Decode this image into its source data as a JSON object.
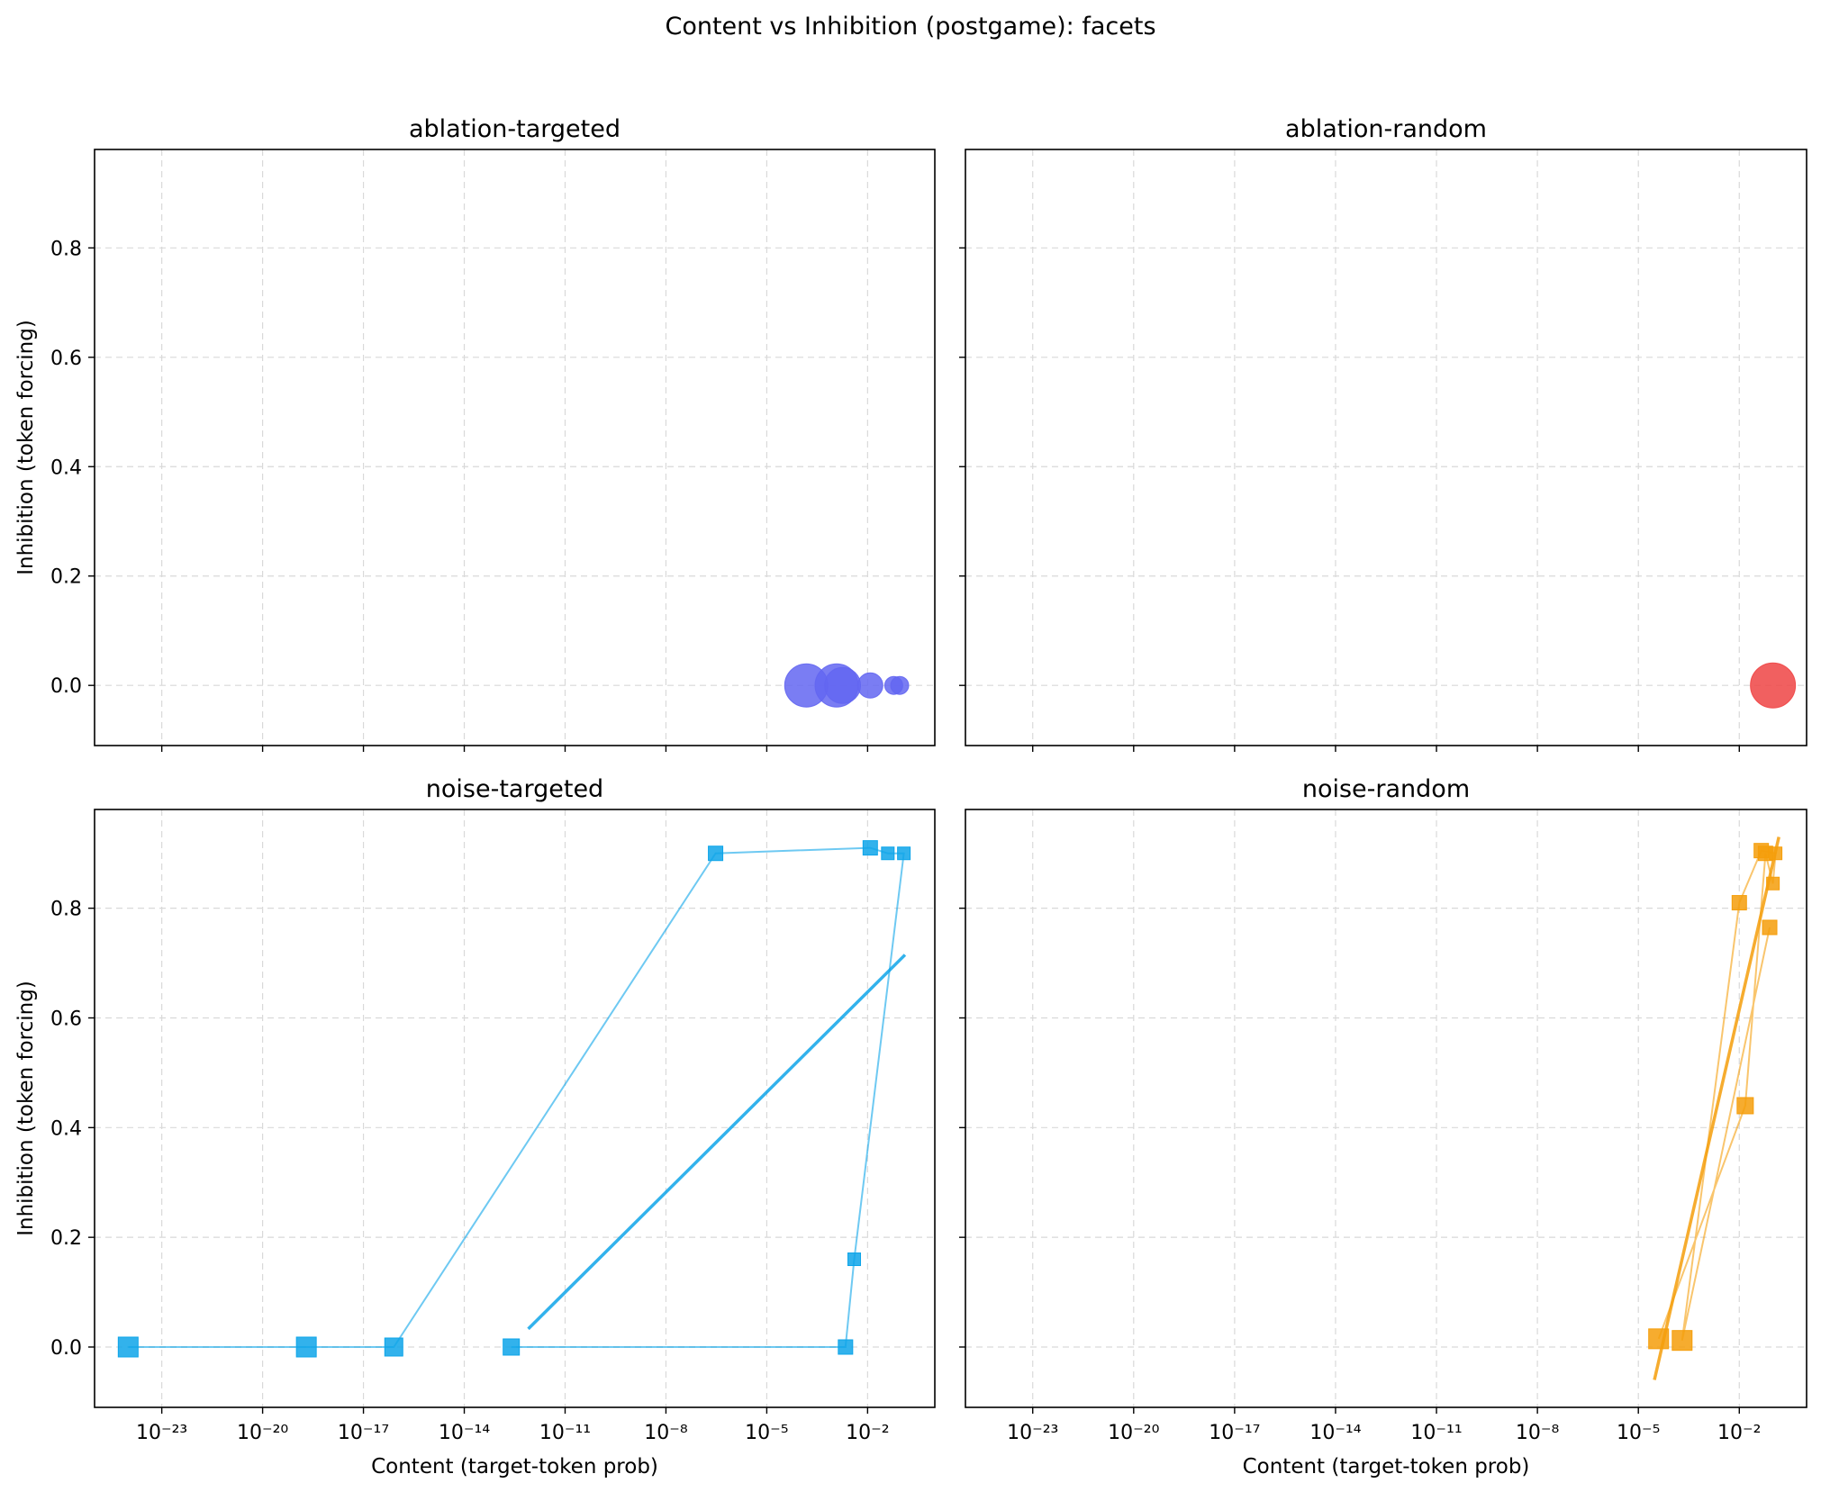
{
  "figure": {
    "title": "Content vs Inhibition (postgame): facets"
  },
  "chart_data": [
    {
      "type": "scatter",
      "title": "ablation-targeted",
      "xlabel": "",
      "ylabel": "Inhibition (token forcing)",
      "xscale": "log",
      "xlim": [
        1e-25,
        1.0
      ],
      "ylim": [
        -0.11,
        0.98
      ],
      "xticks": [
        1e-23,
        1e-20,
        1e-17,
        1e-14,
        1e-11,
        1e-08,
        1e-05,
        0.01
      ],
      "yticks": [
        0.0,
        0.2,
        0.4,
        0.6,
        0.8
      ],
      "grid": true,
      "color": "#6366f1",
      "marker": "circle",
      "connect": false,
      "points": [
        {
          "x": 0.00015,
          "y": 0.0,
          "size": 24
        },
        {
          "x": 0.0012,
          "y": 0.0,
          "size": 24
        },
        {
          "x": 0.0018,
          "y": 0.0,
          "size": 20
        },
        {
          "x": 0.012,
          "y": 0.0,
          "size": 14
        },
        {
          "x": 0.06,
          "y": 0.0,
          "size": 10
        },
        {
          "x": 0.09,
          "y": 0.0,
          "size": 10
        }
      ]
    },
    {
      "type": "scatter",
      "title": "ablation-random",
      "xlabel": "",
      "ylabel": "",
      "xscale": "log",
      "xlim": [
        1e-25,
        1.0
      ],
      "ylim": [
        -0.11,
        0.98
      ],
      "xticks": [
        1e-23,
        1e-20,
        1e-17,
        1e-14,
        1e-11,
        1e-08,
        1e-05,
        0.01
      ],
      "yticks": [
        0.0,
        0.2,
        0.4,
        0.6,
        0.8
      ],
      "grid": true,
      "color": "#ef4444",
      "marker": "circle",
      "connect": false,
      "points": [
        {
          "x": 0.1,
          "y": 0.0,
          "size": 25
        }
      ]
    },
    {
      "type": "line",
      "title": "noise-targeted",
      "xlabel": "Content (target-token prob)",
      "ylabel": "Inhibition (token forcing)",
      "xscale": "log",
      "xlim": [
        1e-25,
        1.0
      ],
      "ylim": [
        -0.11,
        0.98
      ],
      "xticks": [
        1e-23,
        1e-20,
        1e-17,
        1e-14,
        1e-11,
        1e-08,
        1e-05,
        0.01
      ],
      "yticks": [
        0.0,
        0.2,
        0.4,
        0.6,
        0.8
      ],
      "grid": true,
      "color": "#0ea5e9",
      "marker": "square",
      "connect": true,
      "points": [
        {
          "x": 1e-24,
          "y": 0.0,
          "size": 11
        },
        {
          "x": 2e-19,
          "y": 0.0,
          "size": 11
        },
        {
          "x": 8e-17,
          "y": 0.0,
          "size": 10
        },
        {
          "x": 3e-07,
          "y": 0.9,
          "size": 8
        },
        {
          "x": 0.012,
          "y": 0.91,
          "size": 8
        },
        {
          "x": 0.04,
          "y": 0.9,
          "size": 7
        },
        {
          "x": 0.12,
          "y": 0.9,
          "size": 7
        },
        {
          "x": 0.004,
          "y": 0.16,
          "size": 7
        },
        {
          "x": 0.0022,
          "y": 0.0,
          "size": 8
        },
        {
          "x": 2.5e-13,
          "y": 0.0,
          "size": 9
        }
      ],
      "trend": [
        {
          "x": 8e-13,
          "y": 0.033
        },
        {
          "x": 0.13,
          "y": 0.715
        }
      ]
    },
    {
      "type": "line",
      "title": "noise-random",
      "xlabel": "Content (target-token prob)",
      "ylabel": "",
      "xscale": "log",
      "xlim": [
        1e-25,
        1.0
      ],
      "ylim": [
        -0.11,
        0.98
      ],
      "xticks": [
        1e-23,
        1e-20,
        1e-17,
        1e-14,
        1e-11,
        1e-08,
        1e-05,
        0.01
      ],
      "yticks": [
        0.0,
        0.2,
        0.4,
        0.6,
        0.8
      ],
      "grid": true,
      "color": "#f59e0b",
      "marker": "square",
      "connect": true,
      "points": [
        {
          "x": 4e-05,
          "y": 0.015,
          "size": 11
        },
        {
          "x": 0.015,
          "y": 0.44,
          "size": 9
        },
        {
          "x": 0.06,
          "y": 0.9,
          "size": 8
        },
        {
          "x": 0.1,
          "y": 0.845,
          "size": 7
        },
        {
          "x": 0.12,
          "y": 0.9,
          "size": 7
        },
        {
          "x": 0.045,
          "y": 0.905,
          "size": 8
        },
        {
          "x": 0.01,
          "y": 0.81,
          "size": 8
        },
        {
          "x": 0.0002,
          "y": 0.012,
          "size": 11
        },
        {
          "x": 0.08,
          "y": 0.765,
          "size": 8
        }
      ],
      "trend": [
        {
          "x": 3e-05,
          "y": -0.06
        },
        {
          "x": 0.15,
          "y": 0.93
        }
      ]
    }
  ]
}
